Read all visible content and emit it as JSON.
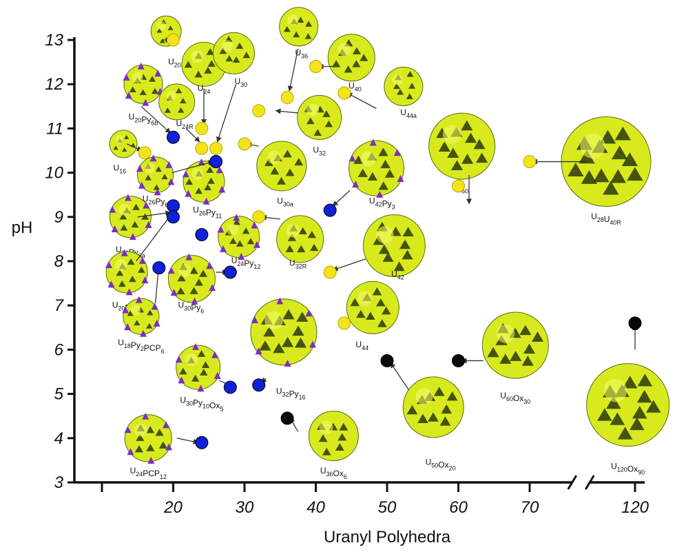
{
  "chart_data": {
    "type": "scatter",
    "title": "",
    "xlabel": "Uranyl Polyhedra",
    "ylabel": "pH",
    "xlim_left": [
      10,
      75
    ],
    "xlim_right": [
      115,
      122
    ],
    "ylim": [
      3,
      13
    ],
    "x_ticks": [
      10,
      20,
      30,
      40,
      50,
      60,
      70,
      120
    ],
    "x_tick_labels": [
      "",
      "20",
      "30",
      "40",
      "50",
      "60",
      "70",
      "120"
    ],
    "y_ticks": [
      3,
      4,
      5,
      6,
      7,
      8,
      9,
      10,
      11,
      12,
      13
    ],
    "y_tick_labels": [
      "3",
      "4",
      "5",
      "6",
      "7",
      "8",
      "9",
      "10",
      "11",
      "12",
      "13"
    ],
    "axis_break": "between 75 and 115",
    "grid": false,
    "colors": {
      "yellow": "#f2e31a",
      "blue": "#1020d8",
      "black": "#0a0a0a",
      "cluster": "#d8ea1e",
      "cluster_dark": "#2a3a0a",
      "cluster_purple": "#7a2fc0",
      "arrow": "#333333"
    },
    "series": [
      {
        "color": "yellow",
        "points": [
          {
            "x": 20,
            "y": 13.0,
            "cluster": "U20R"
          },
          {
            "x": 24,
            "y": 11.0,
            "cluster": "U24"
          },
          {
            "x": 24,
            "y": 10.55,
            "cluster": "U24R"
          },
          {
            "x": 26,
            "y": 10.55,
            "cluster": "U30"
          },
          {
            "x": 16,
            "y": 10.45,
            "cluster": "U16"
          },
          {
            "x": 36,
            "y": 11.7,
            "cluster": "U36"
          },
          {
            "x": 40,
            "y": 12.4,
            "cluster": "U40"
          },
          {
            "x": 44,
            "y": 11.8,
            "cluster": "U44a"
          },
          {
            "x": 32,
            "y": 11.4,
            "cluster": "U32"
          },
          {
            "x": 30,
            "y": 10.65,
            "cluster": "U30a"
          },
          {
            "x": 32,
            "y": 9.0,
            "cluster": "U32R"
          },
          {
            "x": 42,
            "y": 7.75,
            "cluster": "U42"
          },
          {
            "x": 44,
            "y": 6.6,
            "cluster": "U44"
          },
          {
            "x": 60,
            "y": 9.7,
            "cluster": "U60"
          },
          {
            "x": 70,
            "y": 10.25,
            "cluster": "U28U40R"
          }
        ]
      },
      {
        "color": "blue",
        "points": [
          {
            "x": 20,
            "y": 10.8,
            "cluster": "U20Py6b"
          },
          {
            "x": 26,
            "y": 10.25,
            "cluster": "U26Py6"
          },
          {
            "x": 20,
            "y": 9.25,
            "cluster": "U26Py11"
          },
          {
            "x": 20,
            "y": 9.0,
            "cluster": "U20Py6a"
          },
          {
            "x": 24,
            "y": 8.6,
            "cluster": "U24Py12"
          },
          {
            "x": 18,
            "y": 7.85,
            "cluster": "U20Py10"
          },
          {
            "x": 28,
            "y": 7.75,
            "cluster": "U30Py6"
          },
          {
            "x": 42,
            "y": 9.15,
            "cluster": "U42Py3"
          },
          {
            "x": 28,
            "y": 5.15,
            "cluster": "U30Py10Ox5"
          },
          {
            "x": 32,
            "y": 5.2,
            "cluster": "U32Py16"
          },
          {
            "x": 24,
            "y": 3.9,
            "cluster": "U24PCP12"
          }
        ]
      },
      {
        "color": "black",
        "points": [
          {
            "x": 36,
            "y": 4.45,
            "cluster": "U36Ox6"
          },
          {
            "x": 50,
            "y": 5.75,
            "cluster": "U50Ox20"
          },
          {
            "x": 60,
            "y": 5.75,
            "cluster": "U60Ox30"
          },
          {
            "x": 120,
            "y": 6.6,
            "cluster": "U120Ox90"
          }
        ]
      }
    ],
    "clusters": [
      {
        "id": "U20R",
        "base": "U",
        "sub": "20R",
        "cx": 19,
        "cy": 13.2,
        "r": 22,
        "lx": 20.5,
        "ly": 12.45,
        "purple": false
      },
      {
        "id": "U24",
        "base": "U",
        "sub": "24",
        "cx": 24.3,
        "cy": 12.45,
        "r": 32,
        "lx": 24.3,
        "ly": 11.85,
        "purple": false
      },
      {
        "id": "U30",
        "base": "U",
        "sub": "30",
        "cx": 28.5,
        "cy": 12.7,
        "r": 30,
        "lx": 29.5,
        "ly": 12.0,
        "purple": false
      },
      {
        "id": "U36",
        "base": "U",
        "sub": "36",
        "cx": 37.6,
        "cy": 13.3,
        "r": 28,
        "lx": 38.0,
        "ly": 12.65,
        "purple": false
      },
      {
        "id": "U40",
        "base": "U",
        "sub": "40",
        "cx": 45.0,
        "cy": 12.6,
        "r": 34,
        "lx": 45.5,
        "ly": 11.9,
        "purple": false
      },
      {
        "id": "U44a",
        "base": "U",
        "sub": "44a",
        "cx": 52.3,
        "cy": 11.95,
        "r": 28,
        "lx": 53.0,
        "ly": 11.3,
        "purple": false
      },
      {
        "id": "U20Py6b",
        "base": "U",
        "sub": "20",
        "base2": "Py",
        "sub2": "6b",
        "cx": 15.8,
        "cy": 12.0,
        "r": 28,
        "lx": 15.8,
        "ly": 11.2,
        "purple": true
      },
      {
        "id": "U24R",
        "base": "U",
        "sub": "24R",
        "cx": 20.5,
        "cy": 11.6,
        "r": 26,
        "lx": 21.6,
        "ly": 11.05,
        "purple": false
      },
      {
        "id": "U32",
        "base": "U",
        "sub": "32",
        "cx": 40.5,
        "cy": 11.25,
        "r": 32,
        "lx": 40.5,
        "ly": 10.45,
        "purple": false
      },
      {
        "id": "U16",
        "base": "U",
        "sub": "16",
        "cx": 13.0,
        "cy": 10.65,
        "r": 20,
        "lx": 12.5,
        "ly": 10.05,
        "purple": false
      },
      {
        "id": "U26Py6",
        "base": "U",
        "sub": "26",
        "base2": "Py",
        "sub2": "6",
        "cx": 17.5,
        "cy": 9.95,
        "r": 26,
        "lx": 17.5,
        "ly": 9.35,
        "purple": true
      },
      {
        "id": "U26Py11",
        "base": "U",
        "sub": "26",
        "base2": "Py",
        "sub2": "11",
        "cx": 24.3,
        "cy": 9.8,
        "r": 30,
        "lx": 24.8,
        "ly": 9.1,
        "purple": true
      },
      {
        "id": "U30a",
        "base": "U",
        "sub": "30a",
        "cx": 35.2,
        "cy": 10.15,
        "r": 36,
        "lx": 35.7,
        "ly": 9.3,
        "purple": false
      },
      {
        "id": "U42Py3",
        "base": "U",
        "sub": "42",
        "base2": "Py",
        "sub2": "3",
        "cx": 48.5,
        "cy": 10.1,
        "r": 40,
        "lx": 49.3,
        "ly": 9.3,
        "purple": true
      },
      {
        "id": "U60",
        "base": "U",
        "sub": "60",
        "cx": 60.5,
        "cy": 10.6,
        "r": 48,
        "lx": 60.5,
        "ly": 9.6,
        "purple": false
      },
      {
        "id": "U28U40R",
        "base": "U",
        "sub": "28",
        "base2": "U",
        "sub2": "40R",
        "cx": 82.0,
        "cy": 10.25,
        "r": 65,
        "lx": 82.0,
        "ly": 8.95,
        "purple": false
      },
      {
        "id": "U20Py6a",
        "base": "U",
        "sub": "20",
        "base2": "Py",
        "sub2": "6a",
        "cx": 14.0,
        "cy": 9.0,
        "r": 30,
        "lx": 14.0,
        "ly": 8.2,
        "purple": true
      },
      {
        "id": "U24Py12",
        "base": "U",
        "sub": "24",
        "base2": "Py",
        "sub2": "12",
        "cx": 29.2,
        "cy": 8.55,
        "r": 30,
        "lx": 30.2,
        "ly": 7.95,
        "purple": true
      },
      {
        "id": "U32R",
        "base": "U",
        "sub": "32R",
        "cx": 37.8,
        "cy": 8.5,
        "r": 34,
        "lx": 37.5,
        "ly": 7.9,
        "purple": false
      },
      {
        "id": "U42",
        "base": "U",
        "sub": "42",
        "cx": 51.0,
        "cy": 8.35,
        "r": 45,
        "lx": 51.5,
        "ly": 7.65,
        "purple": false
      },
      {
        "id": "U20Py10",
        "base": "U",
        "sub": "20",
        "base2": "Py",
        "sub2": "10",
        "cx": 13.5,
        "cy": 7.75,
        "r": 30,
        "lx": 13.5,
        "ly": 6.95,
        "purple": true
      },
      {
        "id": "U30Py6",
        "base": "U",
        "sub": "30",
        "base2": "Py",
        "sub2": "6",
        "cx": 22.6,
        "cy": 7.6,
        "r": 34,
        "lx": 22.5,
        "ly": 6.95,
        "purple": true
      },
      {
        "id": "U18Py2PCP6",
        "base": "U",
        "sub": "18",
        "base2": "Py",
        "sub2": "2",
        "base3": "PCP",
        "sub3": "6",
        "cx": 15.5,
        "cy": 6.75,
        "r": 26,
        "lx": 15.5,
        "ly": 6.1,
        "purple": true
      },
      {
        "id": "U44",
        "base": "U",
        "sub": "44",
        "cx": 48.0,
        "cy": 6.95,
        "r": 38,
        "lx": 46.5,
        "ly": 6.05,
        "purple": false
      },
      {
        "id": "U32Py16",
        "base": "U",
        "sub": "32",
        "base2": "Py",
        "sub2": "16",
        "cx": 35.5,
        "cy": 6.4,
        "r": 48,
        "lx": 36.5,
        "ly": 5.0,
        "purple": true
      },
      {
        "id": "U30Py10Ox5",
        "base": "U",
        "sub": "30",
        "base2": "Py",
        "sub2": "10",
        "base3": "Ox",
        "sub3": "5",
        "cx": 23.5,
        "cy": 5.6,
        "r": 32,
        "lx": 24.0,
        "ly": 4.8,
        "purple": true
      },
      {
        "id": "U24PCP12",
        "base": "U",
        "sub": "24",
        "base2": "PCP",
        "sub2": "12",
        "cx": 16.5,
        "cy": 4.0,
        "r": 34,
        "lx": 16.5,
        "ly": 3.2,
        "purple": true
      },
      {
        "id": "U36Ox6",
        "base": "U",
        "sub": "36",
        "base2": "Ox",
        "sub2": "6",
        "cx": 42.5,
        "cy": 4.05,
        "r": 36,
        "lx": 42.5,
        "ly": 3.2,
        "purple": false
      },
      {
        "id": "U50Ox20",
        "base": "U",
        "sub": "50",
        "base2": "Ox",
        "sub2": "20",
        "cx": 56.5,
        "cy": 4.7,
        "r": 44,
        "lx": 57.5,
        "ly": 3.4,
        "purple": false
      },
      {
        "id": "U60Ox30",
        "base": "U",
        "sub": "60",
        "base2": "Ox",
        "sub2": "30",
        "cx": 68.0,
        "cy": 6.1,
        "r": 48,
        "lx": 68.0,
        "ly": 4.9,
        "purple": false
      },
      {
        "id": "U120Ox90",
        "base": "U",
        "sub": "120",
        "base2": "Ox",
        "sub2": "90",
        "cx": 119.0,
        "cy": 4.75,
        "r": 60,
        "lx": 119.0,
        "ly": 3.3,
        "purple": false
      }
    ],
    "arrows": [
      {
        "from": [
          18.5,
          13.0
        ],
        "to": [
          19.6,
          13.0
        ]
      },
      {
        "from": [
          24.3,
          11.9
        ],
        "to": [
          24.3,
          11.1
        ]
      },
      {
        "from": [
          28.8,
          12.0
        ],
        "to": [
          26.2,
          10.7
        ]
      },
      {
        "from": [
          37.5,
          12.8
        ],
        "to": [
          36.3,
          11.85
        ]
      },
      {
        "from": [
          42.5,
          12.4
        ],
        "to": [
          40.4,
          12.4
        ]
      },
      {
        "from": [
          48.5,
          11.45
        ],
        "to": [
          44.4,
          11.8
        ]
      },
      {
        "from": [
          37.5,
          11.35
        ],
        "to": [
          34.4,
          11.4
        ]
      },
      {
        "from": [
          15.5,
          11.5
        ],
        "to": [
          19.6,
          10.9
        ]
      },
      {
        "from": [
          21.8,
          11.0
        ],
        "to": [
          23.7,
          10.7
        ]
      },
      {
        "from": [
          13.5,
          10.65
        ],
        "to": [
          15.6,
          10.5
        ]
      },
      {
        "from": [
          19.8,
          10.0
        ],
        "to": [
          25.6,
          10.25
        ]
      },
      {
        "from": [
          32.0,
          10.6
        ],
        "to": [
          30.3,
          10.65
        ]
      },
      {
        "from": [
          44.8,
          9.6
        ],
        "to": [
          42.4,
          9.25
        ]
      },
      {
        "from": [
          61.5,
          9.95
        ],
        "to": [
          61.5,
          9.3
        ]
      },
      {
        "from": [
          78.0,
          10.25
        ],
        "to": [
          70.4,
          10.25
        ]
      },
      {
        "from": [
          15.0,
          9.0
        ],
        "to": [
          19.6,
          9.1
        ]
      },
      {
        "from": [
          14.8,
          8.0
        ],
        "to": [
          19.7,
          9.05
        ]
      },
      {
        "from": [
          35.0,
          8.95
        ],
        "to": [
          32.4,
          9.0
        ]
      },
      {
        "from": [
          47.0,
          8.05
        ],
        "to": [
          42.4,
          7.8
        ]
      },
      {
        "from": [
          17.5,
          7.05
        ],
        "to": [
          18.0,
          7.95
        ]
      },
      {
        "from": [
          26.0,
          7.75
        ],
        "to": [
          27.6,
          7.75
        ]
      },
      {
        "from": [
          26.5,
          5.3
        ],
        "to": [
          28.6,
          5.15
        ]
      },
      {
        "from": [
          33.0,
          5.35
        ],
        "to": [
          32.4,
          5.25
        ]
      },
      {
        "from": [
          20.5,
          4.0
        ],
        "to": [
          23.5,
          3.9
        ]
      },
      {
        "from": [
          37.5,
          4.15
        ],
        "to": [
          36.4,
          4.45
        ]
      },
      {
        "from": [
          53.0,
          5.1
        ],
        "to": [
          50.5,
          5.7
        ]
      },
      {
        "from": [
          63.5,
          5.75
        ],
        "to": [
          60.5,
          5.75
        ]
      },
      {
        "from": [
          120.0,
          6.0
        ],
        "to": [
          120.0,
          6.55
        ]
      }
    ]
  }
}
